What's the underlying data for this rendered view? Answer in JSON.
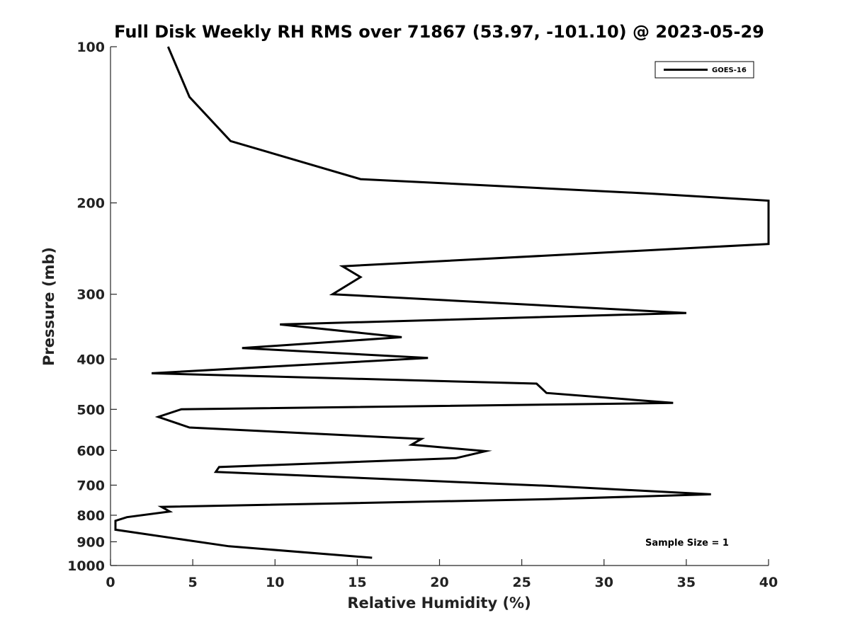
{
  "chart_data": {
    "type": "line",
    "title": "Full Disk Weekly RH RMS over 71867 (53.97, -101.10) @ 2023-05-29",
    "xlabel": "Relative Humidity (%)",
    "ylabel": "Pressure (mb)",
    "xlim": [
      0,
      40
    ],
    "ylim": [
      100,
      1000
    ],
    "y_scale": "log",
    "y_reversed": true,
    "xticks": [
      0,
      5,
      10,
      15,
      20,
      25,
      30,
      35,
      40
    ],
    "yticks": [
      100,
      200,
      300,
      400,
      500,
      600,
      700,
      800,
      900,
      1000
    ],
    "grid": false,
    "legend": {
      "position": "top-right",
      "entries": [
        "GOES-16"
      ]
    },
    "annotation": "Sample Size = 1",
    "series": [
      {
        "name": "GOES-16",
        "color": "#000000",
        "points": [
          [
            3.5,
            100
          ],
          [
            4.8,
            125
          ],
          [
            7.3,
            152
          ],
          [
            15.2,
            180
          ],
          [
            33,
            192
          ],
          [
            40,
            198
          ],
          [
            40,
            240
          ],
          [
            14.1,
            265
          ],
          [
            15.2,
            278
          ],
          [
            13.5,
            300
          ],
          [
            35,
            326
          ],
          [
            10.3,
            343
          ],
          [
            17.7,
            363
          ],
          [
            8,
            381
          ],
          [
            19.3,
            398
          ],
          [
            2.5,
            426
          ],
          [
            25.9,
            446
          ],
          [
            26.5,
            465
          ],
          [
            34.2,
            486
          ],
          [
            4.3,
            500
          ],
          [
            2.9,
            517
          ],
          [
            4.8,
            542
          ],
          [
            18.9,
            570
          ],
          [
            18.3,
            585
          ],
          [
            22.8,
            602
          ],
          [
            21,
            621
          ],
          [
            6.6,
            646
          ],
          [
            6.4,
            660
          ],
          [
            26.6,
            702
          ],
          [
            36.5,
            729
          ],
          [
            26.6,
            745
          ],
          [
            3.1,
            771
          ],
          [
            3.6,
            787
          ],
          [
            1,
            807
          ],
          [
            0.3,
            820
          ],
          [
            0.3,
            853
          ],
          [
            7.2,
            918
          ],
          [
            15.9,
            966
          ]
        ]
      }
    ]
  },
  "colors": {
    "line": "#000000",
    "axis": "#262626",
    "background": "#ffffff"
  }
}
